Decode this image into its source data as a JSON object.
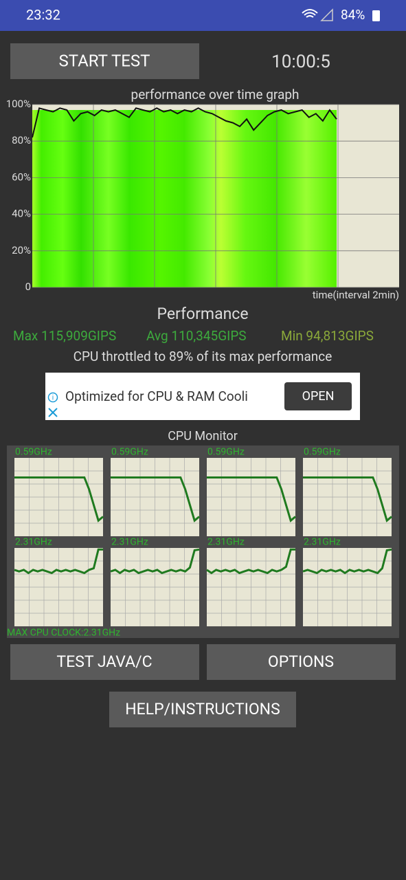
{
  "status_bar": {
    "time": "23:32",
    "battery": "84%"
  },
  "start_button": "START TEST",
  "timer": "10:00:5",
  "performance_graph": {
    "type": "line",
    "title": "performance over time graph",
    "xlabel": "time(interval 2min)",
    "ylim": [
      0,
      100
    ],
    "yticks": [
      0,
      {
        "value": 20,
        "label": "20%"
      },
      {
        "value": 40,
        "label": "40%"
      },
      {
        "value": 60,
        "label": "60%"
      },
      {
        "value": 80,
        "label": "80%"
      },
      {
        "value": 100,
        "label": "100%"
      }
    ],
    "grid": true,
    "color": "#111111",
    "values": [
      82,
      98,
      97,
      96,
      98,
      97,
      91,
      95,
      96,
      94,
      97,
      96,
      97,
      95,
      93,
      98,
      97,
      96,
      98,
      96,
      97,
      95,
      97,
      96,
      98,
      96,
      95,
      93,
      91,
      90,
      88,
      92,
      86,
      90,
      94,
      96,
      97,
      95,
      96,
      97,
      93,
      95,
      91,
      97,
      92
    ]
  },
  "performance": {
    "title": "Performance",
    "max": "Max 115,909GIPS",
    "avg": "Avg 110,345GIPS",
    "min": "Min 94,813GIPS",
    "throttle": "CPU throttled to 89% of its max performance"
  },
  "ad": {
    "text": "Optimized for CPU & RAM Cooli",
    "button": "OPEN"
  },
  "cpu_monitor": {
    "title": "CPU Monitor",
    "ylim": [
      0,
      100
    ],
    "color": "#1f7a1f",
    "cores": [
      {
        "label": "0.59GHz",
        "values": [
          75,
          75,
          75,
          75,
          75,
          75,
          75,
          75,
          75,
          75,
          75,
          75,
          75,
          75,
          75,
          75,
          60,
          40,
          20,
          25
        ]
      },
      {
        "label": "0.59GHz",
        "values": [
          75,
          75,
          75,
          75,
          75,
          75,
          75,
          75,
          75,
          75,
          75,
          75,
          75,
          75,
          75,
          75,
          60,
          40,
          20,
          25
        ]
      },
      {
        "label": "0.59GHz",
        "values": [
          75,
          75,
          75,
          75,
          75,
          75,
          75,
          75,
          75,
          75,
          75,
          75,
          75,
          75,
          75,
          75,
          60,
          40,
          20,
          25
        ]
      },
      {
        "label": "0.59GHz",
        "values": [
          75,
          75,
          75,
          75,
          75,
          75,
          75,
          75,
          75,
          75,
          75,
          75,
          75,
          75,
          75,
          75,
          60,
          40,
          20,
          25
        ]
      },
      {
        "label": "2.31GHz",
        "values": [
          72,
          70,
          72,
          68,
          72,
          70,
          72,
          70,
          68,
          72,
          70,
          72,
          70,
          72,
          70,
          68,
          72,
          74,
          98,
          98
        ]
      },
      {
        "label": "2.31GHz",
        "values": [
          70,
          72,
          68,
          72,
          70,
          72,
          68,
          70,
          72,
          70,
          72,
          68,
          70,
          72,
          70,
          72,
          70,
          75,
          97,
          98
        ]
      },
      {
        "label": "2.31GHz",
        "values": [
          72,
          68,
          72,
          70,
          72,
          70,
          72,
          68,
          70,
          72,
          70,
          72,
          70,
          68,
          72,
          70,
          72,
          76,
          98,
          98
        ]
      },
      {
        "label": "2.31GHz",
        "values": [
          70,
          72,
          70,
          68,
          72,
          70,
          72,
          70,
          72,
          68,
          72,
          70,
          72,
          70,
          72,
          70,
          68,
          74,
          97,
          98
        ]
      }
    ],
    "max_clock": "MAX CPU CLOCK:2.31GHz"
  },
  "buttons": {
    "test": "TEST JAVA/C",
    "options": "OPTIONS",
    "help": "HELP/INSTRUCTIONS"
  }
}
